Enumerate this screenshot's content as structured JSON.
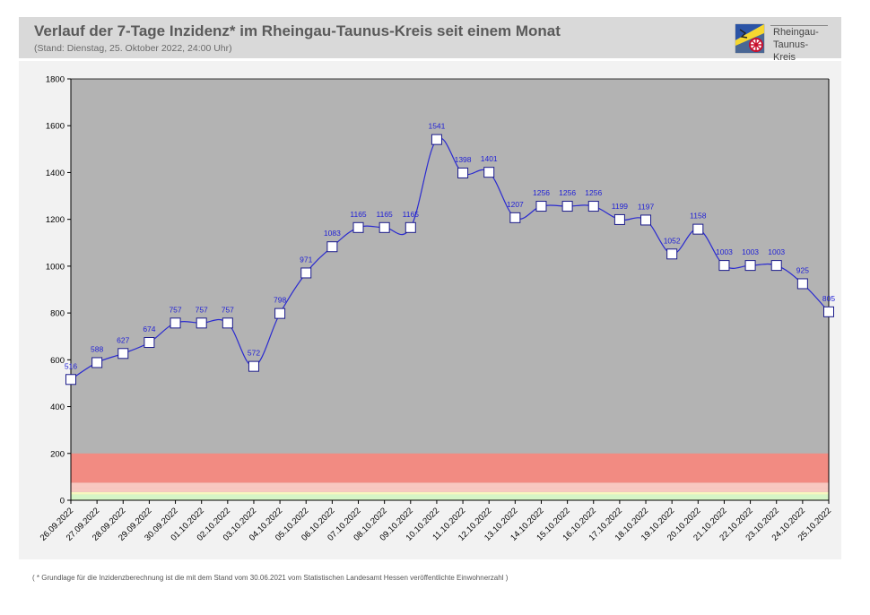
{
  "header": {
    "title": "Verlauf der 7-Tage Inzidenz* im Rheingau-Taunus-Kreis seit einem Monat",
    "subtitle": "(Stand:  Dienstag, 25. Oktober 2022, 24:00 Uhr)",
    "logo_line1": "Rheingau-",
    "logo_line2": "Taunus-Kreis",
    "logo_icon": "coat-of-arms"
  },
  "footnote": "( * Grundlage für die Inzidenzberechnung ist die mit dem Stand vom 30.06.2021 vom Statistischen Landesamt Hessen veröffentlichte Einwohnerzahl )",
  "colors": {
    "line": "#2a2ad0",
    "plot_bg": "#b3b3b3",
    "band_red": "#f28b82",
    "band_light_red": "#f8c8c0",
    "band_yellow": "#f7f7bf",
    "band_green": "#d6f5c6",
    "label": "#1f1fd6"
  },
  "chart_data": {
    "type": "line",
    "categories": [
      "26.09.2022",
      "27.09.2022",
      "28.09.2022",
      "29.09.2022",
      "30.09.2022",
      "01.10.2022",
      "02.10.2022",
      "03.10.2022",
      "04.10.2022",
      "05.10.2022",
      "06.10.2022",
      "07.10.2022",
      "08.10.2022",
      "09.10.2022",
      "10.10.2022",
      "11.10.2022",
      "12.10.2022",
      "13.10.2022",
      "14.10.2022",
      "15.10.2022",
      "16.10.2022",
      "17.10.2022",
      "18.10.2022",
      "19.10.2022",
      "20.10.2022",
      "21.10.2022",
      "22.10.2022",
      "23.10.2022",
      "24.10.2022",
      "25.10.2022"
    ],
    "values": [
      516,
      588,
      627,
      674,
      757,
      757,
      757,
      572,
      798,
      971,
      1083,
      1165,
      1165,
      1165,
      1541,
      1398,
      1401,
      1207,
      1256,
      1256,
      1256,
      1199,
      1197,
      1052,
      1158,
      1003,
      1003,
      1003,
      925,
      805
    ],
    "ylim": [
      0,
      1800
    ],
    "yticks": [
      0,
      200,
      400,
      600,
      800,
      1000,
      1200,
      1400,
      1600,
      1800
    ],
    "bands": [
      {
        "from": 0,
        "to": 25,
        "color": "band_green"
      },
      {
        "from": 25,
        "to": 35,
        "color": "band_yellow"
      },
      {
        "from": 35,
        "to": 50,
        "color": "band_light_red"
      },
      {
        "from": 50,
        "to": 75,
        "color": "band_light_red"
      },
      {
        "from": 75,
        "to": 200,
        "color": "band_red"
      }
    ],
    "marker": "square",
    "grid": false
  }
}
